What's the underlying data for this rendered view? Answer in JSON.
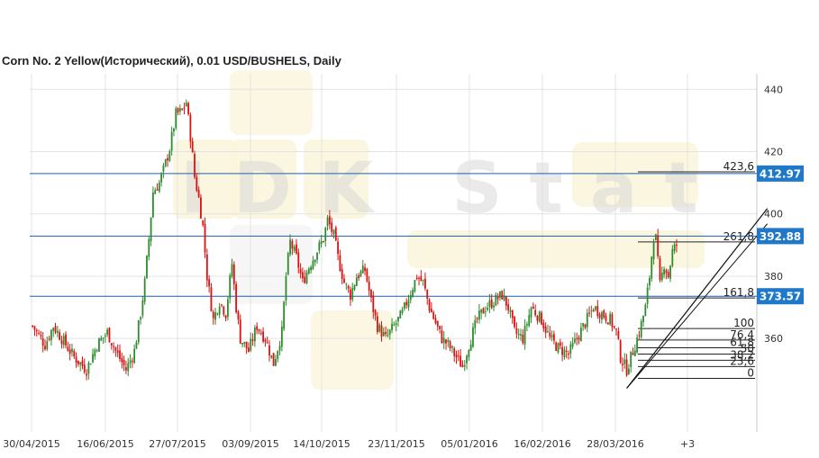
{
  "chart_data": {
    "type": "candlestick",
    "title": "Corn  No. 2 Yellow(Исторический), 0.01 USD/BUSHELS, Daily",
    "watermark": "IDK Stat",
    "ylim": [
      330,
      445
    ],
    "y_ticks": [
      440,
      420,
      400,
      380,
      360
    ],
    "x_tick_labels": [
      "30/04/2015",
      "16/06/2015",
      "27/07/2015",
      "03/09/2015",
      "14/10/2015",
      "23/11/2015",
      "05/01/2016",
      "16/02/2016",
      "28/03/2016",
      "+3"
    ],
    "grid": true,
    "colors": {
      "up": "#2e8b2e",
      "down": "#dd1111",
      "level_line": "#1f5fa8",
      "badge": "#1f78c8",
      "grid": "#e3e3e3"
    },
    "price_levels": [
      {
        "label": "412.97",
        "value": 412.97
      },
      {
        "label": "392.88",
        "value": 392.88
      },
      {
        "label": "373.57",
        "value": 373.57
      }
    ],
    "fibonacci_levels": [
      {
        "label": "423,6",
        "value": 413.5
      },
      {
        "label": "261,8",
        "value": 391.0
      },
      {
        "label": "161,8",
        "value": 373.0
      },
      {
        "label": "100",
        "value": 363.2
      },
      {
        "label": "76,4",
        "value": 359.5
      },
      {
        "label": "61,8",
        "value": 357.0
      },
      {
        "label": "50",
        "value": 355.0
      },
      {
        "label": "38,2",
        "value": 353.0
      },
      {
        "label": "23,6",
        "value": 351.0
      },
      {
        "label": "0",
        "value": 347.2
      }
    ],
    "trendline": {
      "from": {
        "bar": 286,
        "value": 344
      },
      "to": {
        "bar": 345,
        "value": 400
      }
    },
    "trendline_tag": {
      "label": "392.88",
      "note": "label of the middle horizontal line"
    },
    "close_path": [
      [
        0,
        364
      ],
      [
        6,
        358
      ],
      [
        10,
        364
      ],
      [
        15,
        359
      ],
      [
        20,
        354
      ],
      [
        26,
        350
      ],
      [
        31,
        358
      ],
      [
        36,
        362
      ],
      [
        40,
        356
      ],
      [
        45,
        350
      ],
      [
        49,
        356
      ],
      [
        52,
        368
      ],
      [
        54,
        378
      ],
      [
        56,
        392
      ],
      [
        58,
        407
      ],
      [
        61,
        410
      ],
      [
        63,
        414
      ],
      [
        66,
        421
      ],
      [
        69,
        432
      ],
      [
        72,
        433
      ],
      [
        74,
        436
      ],
      [
        76,
        425
      ],
      [
        78,
        412
      ],
      [
        80,
        405
      ],
      [
        82,
        396
      ],
      [
        84,
        380
      ],
      [
        87,
        366
      ],
      [
        90,
        372
      ],
      [
        93,
        368
      ],
      [
        96,
        384
      ],
      [
        98,
        370
      ],
      [
        100,
        360
      ],
      [
        104,
        356
      ],
      [
        108,
        364
      ],
      [
        112,
        360
      ],
      [
        116,
        352
      ],
      [
        120,
        362
      ],
      [
        122,
        380
      ],
      [
        124,
        391
      ],
      [
        127,
        386
      ],
      [
        130,
        378
      ],
      [
        133,
        383
      ],
      [
        136,
        387
      ],
      [
        140,
        392
      ],
      [
        142,
        398
      ],
      [
        145,
        393
      ],
      [
        147,
        386
      ],
      [
        150,
        378
      ],
      [
        153,
        374
      ],
      [
        156,
        380
      ],
      [
        160,
        382
      ],
      [
        163,
        372
      ],
      [
        166,
        364
      ],
      [
        170,
        360
      ],
      [
        174,
        364
      ],
      [
        178,
        368
      ],
      [
        182,
        375
      ],
      [
        185,
        380
      ],
      [
        188,
        378
      ],
      [
        191,
        370
      ],
      [
        194,
        365
      ],
      [
        197,
        360
      ],
      [
        200,
        358
      ],
      [
        204,
        354
      ],
      [
        207,
        351
      ],
      [
        210,
        358
      ],
      [
        214,
        366
      ],
      [
        218,
        370
      ],
      [
        222,
        372
      ],
      [
        226,
        374
      ],
      [
        229,
        370
      ],
      [
        232,
        362
      ],
      [
        236,
        360
      ],
      [
        240,
        370
      ],
      [
        245,
        366
      ],
      [
        249,
        360
      ],
      [
        253,
        357
      ],
      [
        258,
        355
      ],
      [
        262,
        360
      ],
      [
        266,
        365
      ],
      [
        270,
        370
      ],
      [
        274,
        368
      ],
      [
        278,
        366
      ],
      [
        281,
        362
      ],
      [
        283,
        354
      ],
      [
        286,
        350
      ],
      [
        289,
        356
      ],
      [
        292,
        362
      ],
      [
        295,
        370
      ],
      [
        297,
        380
      ],
      [
        299,
        393
      ],
      [
        300,
        392
      ],
      [
        302,
        377
      ],
      [
        304,
        384
      ],
      [
        306,
        380
      ],
      [
        308,
        388
      ],
      [
        310,
        390
      ]
    ]
  }
}
